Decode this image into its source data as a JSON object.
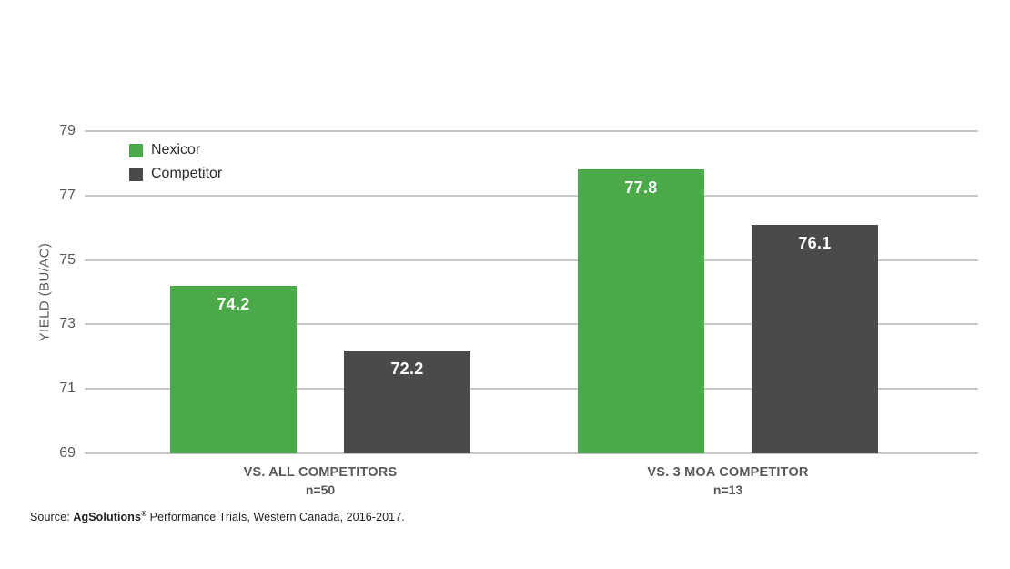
{
  "chart_data": {
    "type": "bar",
    "title": "",
    "ylabel": "YIELD (BU/AC)",
    "xlabel": "",
    "ylim": [
      69,
      79
    ],
    "yticks": [
      79,
      77,
      75,
      73,
      71,
      69
    ],
    "grid": true,
    "legend_position": "top-left",
    "categories": [
      {
        "label": "VS. ALL COMPETITORS",
        "sublabel": "n=50"
      },
      {
        "label": "VS. 3 MOA COMPETITOR",
        "sublabel": "n=13"
      }
    ],
    "series": [
      {
        "name": "Nexicor",
        "color": "#4BA94A",
        "values": [
          74.2,
          77.8
        ]
      },
      {
        "name": "Competitor",
        "color": "#4A4A4C",
        "values": [
          72.2,
          76.1
        ]
      }
    ]
  },
  "source": {
    "prefix": "Source: ",
    "brand": "AgSolutions",
    "registered_mark": "®",
    "rest": " Performance Trials, Western Canada, 2016-2017."
  },
  "colors": {
    "nexicor_green": "#4BA94A",
    "competitor_gray": "#4A4A4C",
    "gridline": "#C7C7C7",
    "axis_text": "#58585A",
    "bar_value_text": "#FFFFFF"
  }
}
